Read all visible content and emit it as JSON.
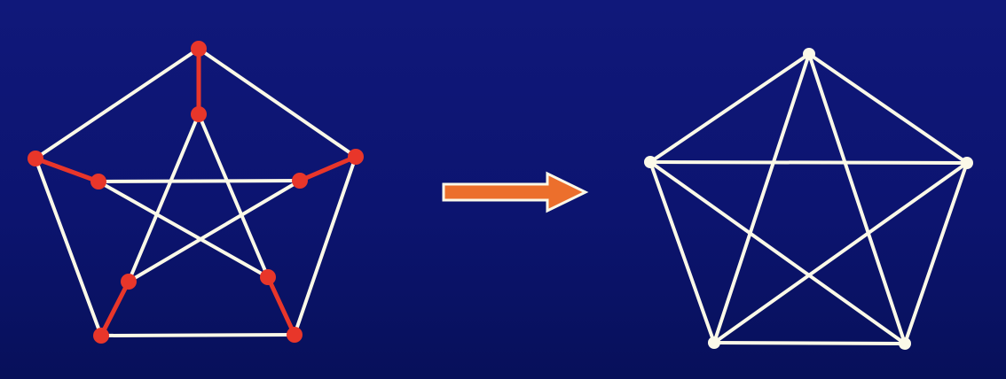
{
  "colors": {
    "background_top": "#10187a",
    "background_bottom": "#07105a",
    "edge": "#fbf9e8",
    "contracted_edge": "#e8362a",
    "contracted_vertex": "#e8362a",
    "vertex": "#fbf9e8",
    "arrow_fill": "#ec6f2c",
    "arrow_outline": "#fbf9e8"
  },
  "diagram": {
    "description_icon": "right-arrow-icon",
    "left_graph": {
      "name": "petersen-graph",
      "outer_cycle": [
        "o0",
        "o1",
        "o2",
        "o3",
        "o4"
      ],
      "inner_star": [
        [
          "i0",
          "i2"
        ],
        [
          "i2",
          "i4"
        ],
        [
          "i4",
          "i1"
        ],
        [
          "i1",
          "i3"
        ],
        [
          "i3",
          "i0"
        ]
      ],
      "spokes": [
        [
          "o0",
          "i0"
        ],
        [
          "o1",
          "i1"
        ],
        [
          "o2",
          "i2"
        ],
        [
          "o3",
          "i3"
        ],
        [
          "o4",
          "i4"
        ]
      ],
      "highlighted": "spokes"
    },
    "right_graph": {
      "name": "complete-graph-k5",
      "vertices": [
        "v0",
        "v1",
        "v2",
        "v3",
        "v4"
      ],
      "edges": "all-pairs"
    }
  }
}
